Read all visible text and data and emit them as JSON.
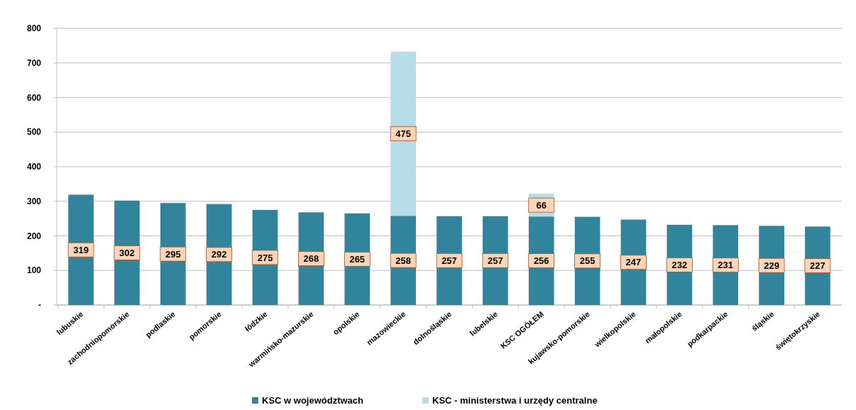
{
  "chart_data": {
    "type": "bar",
    "stacked": true,
    "categories": [
      "lubuskie",
      "zachodniopomorskie",
      "podlaskie",
      "pomorskie",
      "łódzkie",
      "warmińsko-mazurskie",
      "opolskie",
      "mazowieckie",
      "dolnośląskie",
      "lubelskie",
      "KSC OGÓŁEM",
      "kujawsko-pomorskie",
      "wielkopolskie",
      "małopolskie",
      "podkarpackie",
      "śląskie",
      "świętokrzyskie"
    ],
    "series": [
      {
        "name": "KSC w województwach",
        "color": "#31849b",
        "values": [
          319,
          302,
          295,
          292,
          275,
          268,
          265,
          258,
          257,
          257,
          256,
          255,
          247,
          232,
          231,
          229,
          227
        ]
      },
      {
        "name": "KSC - ministerstwa i urzędy centralne",
        "color": "#b7dee8",
        "values": [
          null,
          null,
          null,
          null,
          null,
          null,
          null,
          475,
          null,
          null,
          66,
          null,
          null,
          null,
          null,
          null,
          null
        ]
      }
    ],
    "ylim": [
      0,
      800
    ],
    "yticks": [
      {
        "value": 0,
        "label": "-"
      },
      100,
      200,
      300,
      400,
      500,
      600,
      700,
      800
    ],
    "grid": "y",
    "legend": "bottom",
    "data_labels": true
  }
}
